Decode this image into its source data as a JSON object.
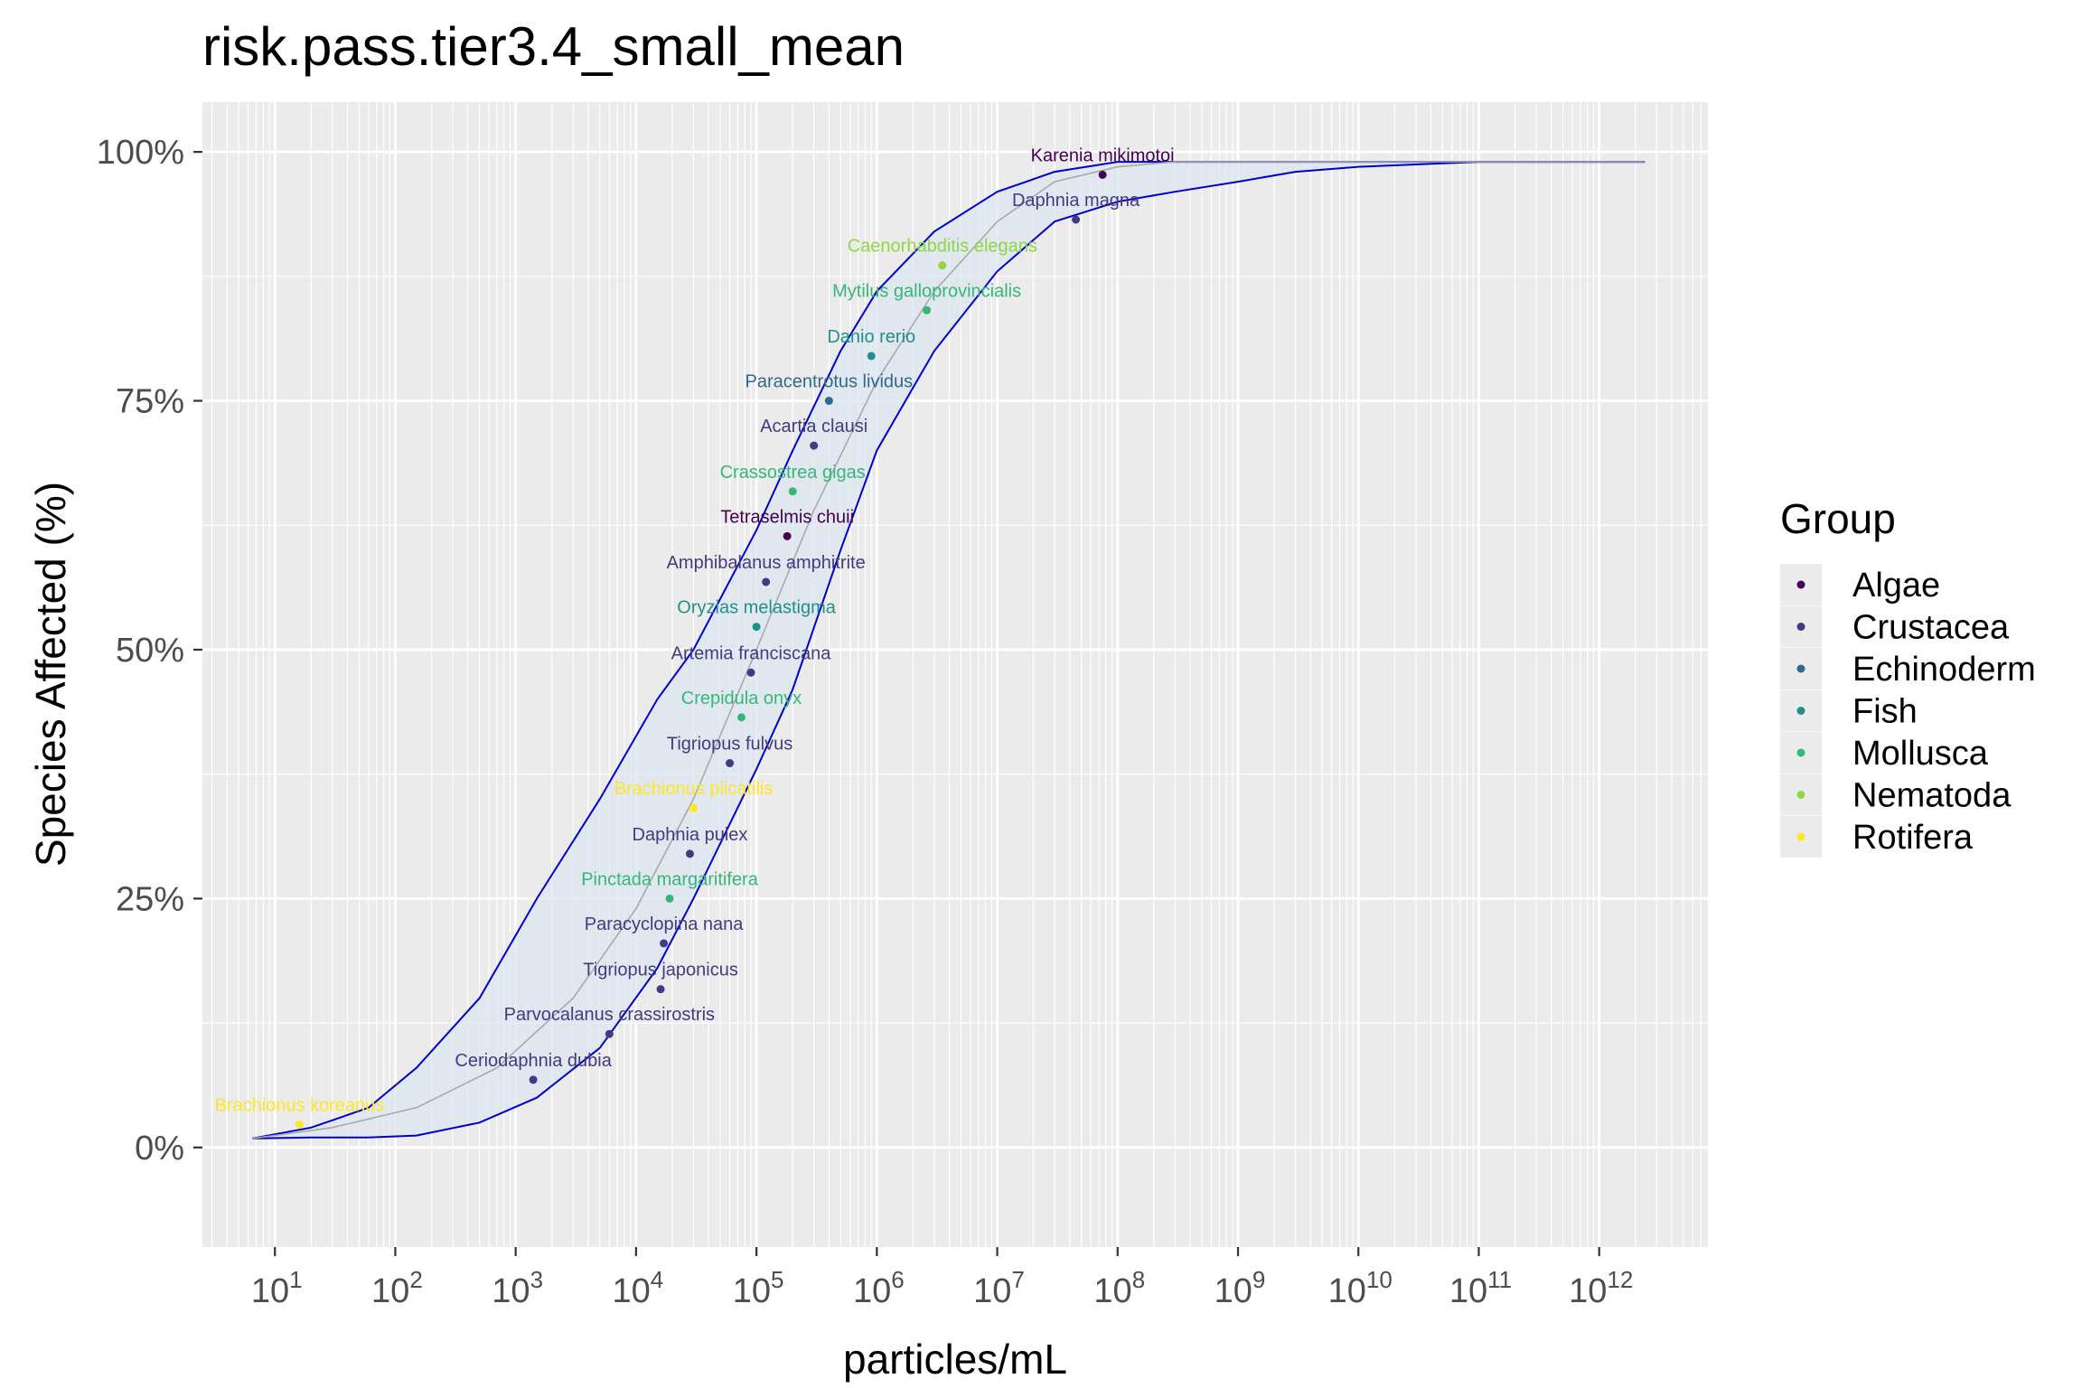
{
  "chart_data": {
    "type": "scatter",
    "title": "risk.pass.tier3.4_small_mean",
    "xlabel": "particles/mL",
    "ylabel": "Species Affected (%)",
    "x_scale": "log10",
    "xlim": [
      2.5,
      8000000000000
    ],
    "ylim": [
      -0.1,
      1.05
    ],
    "x_ticks": [
      {
        "value": 10,
        "base": "10",
        "exp": "1"
      },
      {
        "value": 100,
        "base": "10",
        "exp": "2"
      },
      {
        "value": 1000,
        "base": "10",
        "exp": "3"
      },
      {
        "value": 10000,
        "base": "10",
        "exp": "4"
      },
      {
        "value": 100000,
        "base": "10",
        "exp": "5"
      },
      {
        "value": 1000000,
        "base": "10",
        "exp": "6"
      },
      {
        "value": 10000000,
        "base": "10",
        "exp": "7"
      },
      {
        "value": 100000000,
        "base": "10",
        "exp": "8"
      },
      {
        "value": 1000000000,
        "base": "10",
        "exp": "9"
      },
      {
        "value": 10000000000,
        "base": "10",
        "exp": "10"
      },
      {
        "value": 100000000000,
        "base": "10",
        "exp": "11"
      },
      {
        "value": 1000000000000,
        "base": "10",
        "exp": "12"
      }
    ],
    "y_ticks": [
      {
        "value": 0,
        "label": "0%"
      },
      {
        "value": 0.25,
        "label": "25%"
      },
      {
        "value": 0.5,
        "label": "50%"
      },
      {
        "value": 0.75,
        "label": "75%"
      },
      {
        "value": 1,
        "label": "100%"
      }
    ],
    "grid": true,
    "legend": {
      "title": "Group",
      "position": "right",
      "items": [
        {
          "name": "Algae",
          "color": "#440154"
        },
        {
          "name": "Crustacea",
          "color": "#443A83"
        },
        {
          "name": "Echinoderm",
          "color": "#31688E"
        },
        {
          "name": "Fish",
          "color": "#21908C"
        },
        {
          "name": "Mollusca",
          "color": "#35B779"
        },
        {
          "name": "Nematoda",
          "color": "#8FD744"
        },
        {
          "name": "Rotifera",
          "color": "#FDE725"
        }
      ]
    },
    "points": [
      {
        "species": "Brachionus koreanus",
        "group": "Rotifera",
        "x": 16,
        "y": 0.023
      },
      {
        "species": "Ceriodaphnia dubia",
        "group": "Crustacea",
        "x": 1400,
        "y": 0.068
      },
      {
        "species": "Parvocalanus crassirostris",
        "group": "Crustacea",
        "x": 6000,
        "y": 0.114
      },
      {
        "species": "Tigriopus japonicus",
        "group": "Crustacea",
        "x": 16000,
        "y": 0.159
      },
      {
        "species": "Paracyclopina nana",
        "group": "Crustacea",
        "x": 17000,
        "y": 0.205
      },
      {
        "species": "Pinctada margaritifera",
        "group": "Mollusca",
        "x": 19000,
        "y": 0.25
      },
      {
        "species": "Daphnia pulex",
        "group": "Crustacea",
        "x": 28000,
        "y": 0.295
      },
      {
        "species": "Brachionus plicatilis",
        "group": "Rotifera",
        "x": 30000,
        "y": 0.341
      },
      {
        "species": "Tigriopus fulvus",
        "group": "Crustacea",
        "x": 60000,
        "y": 0.386
      },
      {
        "species": "Crepidula onyx",
        "group": "Mollusca",
        "x": 75000,
        "y": 0.432
      },
      {
        "species": "Artemia franciscana",
        "group": "Crustacea",
        "x": 90000,
        "y": 0.477
      },
      {
        "species": "Oryzias melastigma",
        "group": "Fish",
        "x": 100000,
        "y": 0.523
      },
      {
        "species": "Amphibalanus amphitrite",
        "group": "Crustacea",
        "x": 120000,
        "y": 0.568
      },
      {
        "species": "Tetraselmis chuii",
        "group": "Algae",
        "x": 180000,
        "y": 0.614
      },
      {
        "species": "Crassostrea gigas",
        "group": "Mollusca",
        "x": 200000,
        "y": 0.659
      },
      {
        "species": "Acartia clausi",
        "group": "Crustacea",
        "x": 300000,
        "y": 0.705
      },
      {
        "species": "Paracentrotus lividus",
        "group": "Echinoderm",
        "x": 400000,
        "y": 0.75
      },
      {
        "species": "Danio rerio",
        "group": "Fish",
        "x": 900000,
        "y": 0.795
      },
      {
        "species": "Mytilus galloprovincialis",
        "group": "Mollusca",
        "x": 2600000,
        "y": 0.841
      },
      {
        "species": "Caenorhabditis elegans",
        "group": "Nematoda",
        "x": 3500000,
        "y": 0.886
      },
      {
        "species": "Daphnia magna",
        "group": "Crustacea",
        "x": 45000000,
        "y": 0.932
      },
      {
        "species": "Karenia mikimotoi",
        "group": "Algae",
        "x": 75000000,
        "y": 0.977
      }
    ],
    "fit_line": {
      "x": [
        6.5,
        30,
        150,
        700,
        3000,
        10000,
        30000,
        100000,
        300000,
        1000000,
        3000000,
        10000000,
        30000000,
        100000000,
        300000000,
        1000000000,
        3000000000,
        10000000000,
        100000000000,
        2400000000000
      ],
      "y": [
        0.009,
        0.02,
        0.04,
        0.08,
        0.15,
        0.24,
        0.35,
        0.5,
        0.64,
        0.77,
        0.86,
        0.93,
        0.97,
        0.985,
        0.99,
        0.99,
        0.99,
        0.99,
        0.99,
        0.99
      ]
    },
    "confidence_band": {
      "x": [
        6.5,
        20,
        60,
        150,
        500,
        1500,
        5000,
        15000,
        30000,
        100000,
        200000,
        500000,
        1000000,
        3000000,
        10000000,
        30000000,
        100000000,
        300000000,
        1000000000,
        3000000000,
        10000000000,
        100000000000,
        2400000000000
      ],
      "lower": [
        0.009,
        0.01,
        0.01,
        0.012,
        0.025,
        0.05,
        0.1,
        0.18,
        0.25,
        0.38,
        0.46,
        0.6,
        0.7,
        0.8,
        0.88,
        0.93,
        0.95,
        0.96,
        0.97,
        0.98,
        0.985,
        0.99,
        0.99
      ],
      "upper": [
        0.009,
        0.02,
        0.04,
        0.08,
        0.15,
        0.25,
        0.35,
        0.45,
        0.5,
        0.62,
        0.7,
        0.8,
        0.86,
        0.92,
        0.96,
        0.98,
        0.99,
        0.99,
        0.99,
        0.99,
        0.99,
        0.99,
        0.99
      ]
    }
  }
}
